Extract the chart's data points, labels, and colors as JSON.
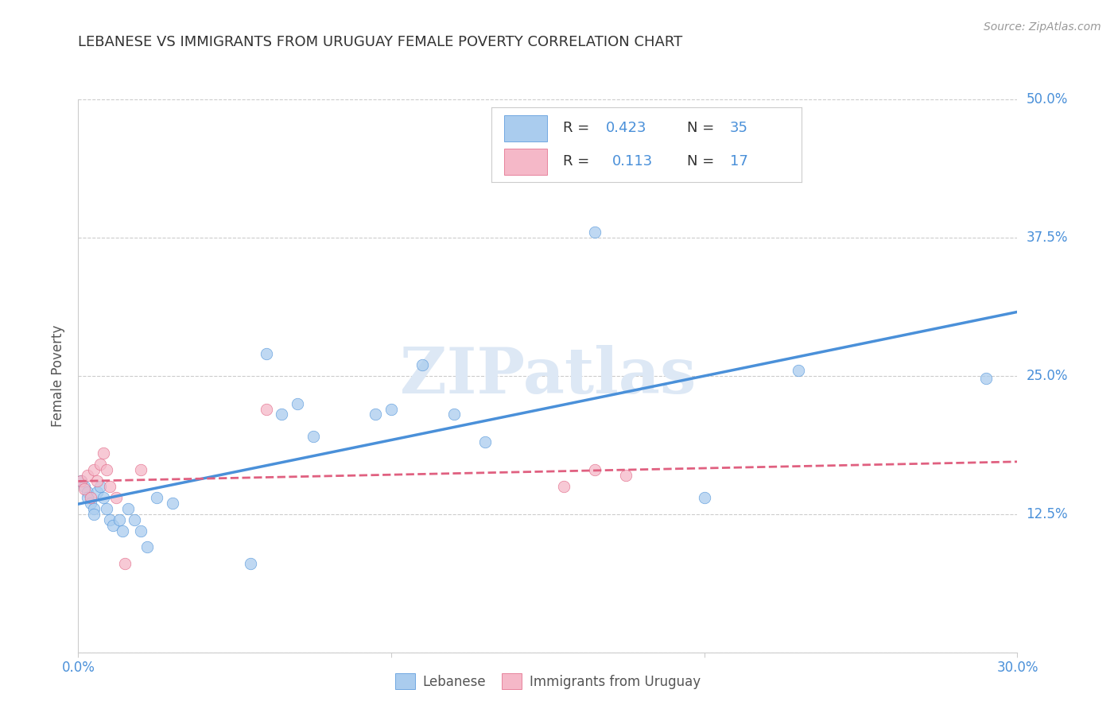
{
  "title": "LEBANESE VS IMMIGRANTS FROM URUGUAY FEMALE POVERTY CORRELATION CHART",
  "source": "Source: ZipAtlas.com",
  "ylabel": "Female Poverty",
  "x_min": 0.0,
  "x_max": 0.3,
  "y_min": 0.0,
  "y_max": 0.5,
  "y_ticks": [
    0.0,
    0.125,
    0.25,
    0.375,
    0.5
  ],
  "y_tick_labels": [
    "",
    "12.5%",
    "25.0%",
    "37.5%",
    "50.0%"
  ],
  "x_ticks": [
    0.0,
    0.1,
    0.2,
    0.3
  ],
  "x_tick_labels": [
    "0.0%",
    "",
    "",
    "30.0%"
  ],
  "blue_color": "#aaccee",
  "pink_color": "#f5b8c8",
  "blue_line_color": "#4a90d9",
  "pink_line_color": "#e06080",
  "axis_color": "#4a90d9",
  "title_color": "#333333",
  "source_color": "#999999",
  "ylabel_color": "#555555",
  "watermark_color": "#dde8f5",
  "blue_x": [
    0.001,
    0.002,
    0.003,
    0.003,
    0.004,
    0.005,
    0.005,
    0.006,
    0.007,
    0.008,
    0.009,
    0.01,
    0.011,
    0.013,
    0.014,
    0.016,
    0.018,
    0.02,
    0.022,
    0.025,
    0.03,
    0.055,
    0.06,
    0.065,
    0.07,
    0.075,
    0.095,
    0.1,
    0.11,
    0.12,
    0.13,
    0.165,
    0.2,
    0.23,
    0.29
  ],
  "blue_y": [
    0.155,
    0.15,
    0.145,
    0.14,
    0.135,
    0.13,
    0.125,
    0.145,
    0.15,
    0.14,
    0.13,
    0.12,
    0.115,
    0.12,
    0.11,
    0.13,
    0.12,
    0.11,
    0.095,
    0.14,
    0.135,
    0.08,
    0.27,
    0.215,
    0.225,
    0.195,
    0.215,
    0.22,
    0.26,
    0.215,
    0.19,
    0.38,
    0.14,
    0.255,
    0.248
  ],
  "pink_x": [
    0.001,
    0.002,
    0.003,
    0.004,
    0.005,
    0.006,
    0.007,
    0.008,
    0.009,
    0.01,
    0.012,
    0.015,
    0.02,
    0.06,
    0.155,
    0.165,
    0.175
  ],
  "pink_y": [
    0.155,
    0.148,
    0.16,
    0.14,
    0.165,
    0.155,
    0.17,
    0.18,
    0.165,
    0.15,
    0.14,
    0.08,
    0.165,
    0.22,
    0.15,
    0.165,
    0.16
  ],
  "marker_size": 110,
  "marker_alpha": 0.75
}
